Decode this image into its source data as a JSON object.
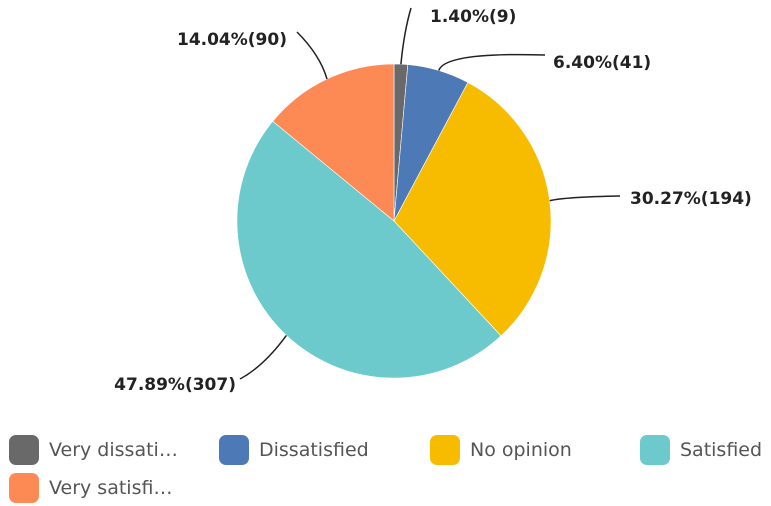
{
  "chart_data": {
    "type": "pie",
    "title": "",
    "slices": [
      {
        "label": "Very dissatisfied",
        "legend_label": "Very dissati…",
        "value": 9,
        "percent": 1.4,
        "data_label": "1.40%(9)",
        "color": "#696969"
      },
      {
        "label": "Dissatisfied",
        "legend_label": "Dissatisfied",
        "value": 41,
        "percent": 6.4,
        "data_label": "6.40%(41)",
        "color": "#4e79b7"
      },
      {
        "label": "No opinion",
        "legend_label": "No opinion",
        "value": 194,
        "percent": 30.27,
        "data_label": "30.27%(194)",
        "color": "#f7bc00"
      },
      {
        "label": "Satisfied",
        "legend_label": "Satisfied",
        "value": 307,
        "percent": 47.89,
        "data_label": "47.89%(307)",
        "color": "#6ccacd"
      },
      {
        "label": "Very satisfied",
        "legend_label": "Very satisfi…",
        "value": 90,
        "percent": 14.04,
        "data_label": "14.04%(90)",
        "color": "#fd8a54"
      }
    ],
    "start": "12 o'clock",
    "direction": "clockwise",
    "legend_position": "bottom"
  }
}
